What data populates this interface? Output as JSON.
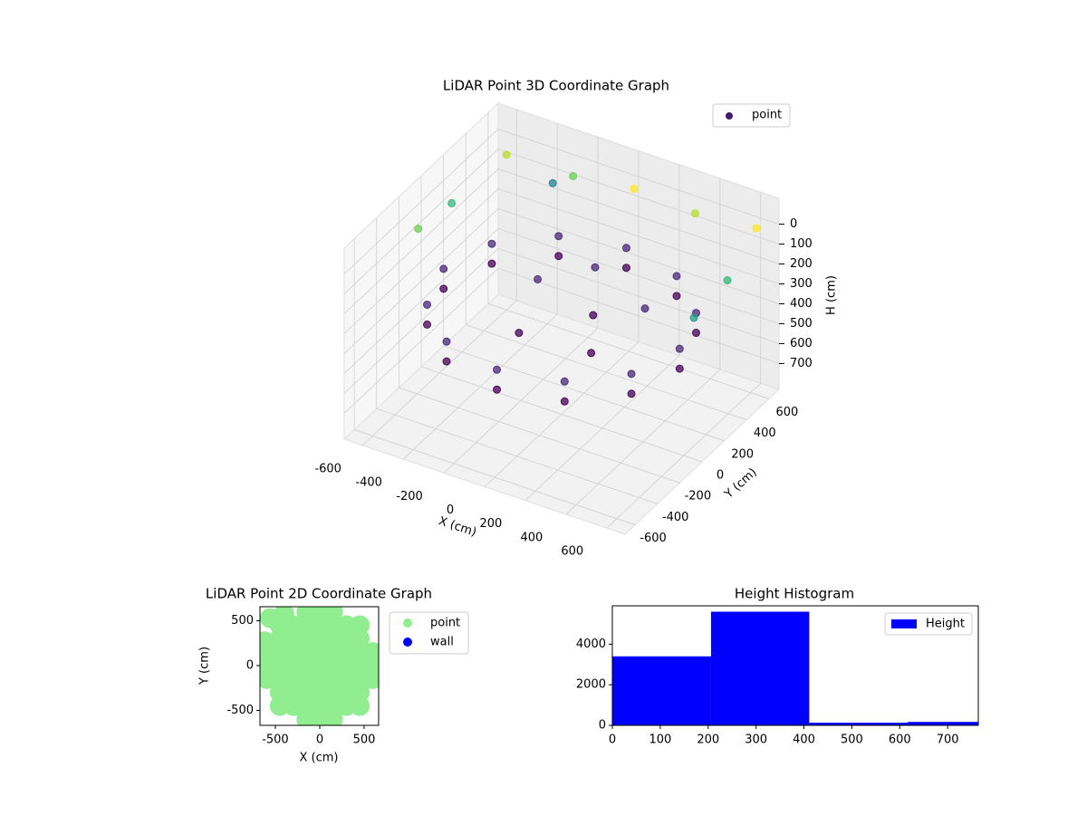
{
  "chart_data": [
    {
      "type": "scatter3d",
      "title": "LiDAR Point 3D Coordinate Graph",
      "xlabel": "X (cm)",
      "ylabel": "Y (cm)",
      "zlabel": "H (cm)",
      "xlim": [
        -690,
        690
      ],
      "ylim": [
        -690,
        690
      ],
      "zlim": [
        830,
        -130
      ],
      "xticks": [
        -600,
        -400,
        -200,
        0,
        200,
        400,
        600
      ],
      "yticks": [
        -600,
        -400,
        -200,
        0,
        200,
        400,
        600
      ],
      "zticks": [
        0,
        100,
        200,
        300,
        400,
        500,
        600,
        700
      ],
      "cmap": "viridis",
      "legend": "upper right",
      "grid": true,
      "series": [
        {
          "name": "point",
          "color": "#46186b",
          "x": [
            580,
            502,
            290,
            0,
            -290,
            -502,
            -580,
            -502,
            -290,
            0,
            290,
            502,
            580,
            502,
            290,
            0,
            -290,
            -502,
            -580,
            -502,
            -290,
            0,
            290,
            502,
            100,
            -200,
            200,
            -100,
            0,
            300,
            -600,
            -300,
            0,
            300,
            600,
            650,
            650,
            -650,
            -650,
            -400
          ],
          "y": [
            0,
            290,
            502,
            580,
            502,
            290,
            0,
            -290,
            -502,
            -580,
            -502,
            -290,
            0,
            290,
            502,
            580,
            502,
            290,
            0,
            -290,
            -502,
            -580,
            -502,
            -290,
            100,
            150,
            -100,
            -200,
            300,
            200,
            600,
            650,
            650,
            650,
            650,
            300,
            0,
            200,
            -100,
            650
          ],
          "z": [
            300,
            300,
            300,
            300,
            300,
            300,
            300,
            300,
            300,
            300,
            300,
            300,
            400,
            400,
            400,
            400,
            400,
            400,
            400,
            400,
            400,
            400,
            400,
            400,
            350,
            300,
            400,
            350,
            250,
            300,
            50,
            80,
            40,
            60,
            30,
            90,
            120,
            100,
            70,
            150
          ]
        }
      ]
    },
    {
      "type": "scatter",
      "title": "LiDAR Point 2D Coordinate Graph",
      "xlabel": "X (cm)",
      "ylabel": "Y (cm)",
      "xlim": [
        -673,
        663
      ],
      "ylim": [
        -667,
        657
      ],
      "xticks": [
        -500,
        0,
        500
      ],
      "yticks": [
        -500,
        0,
        500
      ],
      "legend": "outside right",
      "series": [
        {
          "name": "point",
          "color": "#90ee90",
          "x": [
            -150,
            0,
            150,
            -450,
            -300,
            -150,
            0,
            150,
            300,
            450,
            -450,
            -300,
            -150,
            0,
            150,
            300,
            450,
            -600,
            -450,
            -300,
            -150,
            0,
            150,
            300,
            450,
            600,
            -600,
            -450,
            -300,
            -150,
            0,
            150,
            300,
            450,
            600,
            -600,
            -450,
            -300,
            -150,
            0,
            150,
            300,
            450,
            600,
            -450,
            -300,
            -150,
            0,
            150,
            300,
            450,
            -450,
            -300,
            -150,
            0,
            150,
            300,
            450,
            -150,
            0,
            150,
            -560,
            -400,
            -620
          ],
          "y": [
            600,
            600,
            600,
            450,
            450,
            450,
            450,
            450,
            450,
            450,
            300,
            300,
            300,
            300,
            300,
            300,
            300,
            150,
            150,
            150,
            150,
            150,
            150,
            150,
            150,
            150,
            0,
            0,
            0,
            0,
            0,
            0,
            0,
            0,
            0,
            -150,
            -150,
            -150,
            -150,
            -150,
            -150,
            -150,
            -150,
            -150,
            -300,
            -300,
            -300,
            -300,
            -300,
            -300,
            -300,
            -450,
            -450,
            -450,
            -450,
            -450,
            -450,
            -450,
            -600,
            -600,
            -600,
            530,
            580,
            270
          ]
        },
        {
          "name": "wall",
          "color": "#0000ff",
          "x": [],
          "y": []
        }
      ]
    },
    {
      "type": "histogram",
      "title": "Height Histogram",
      "bins": [
        0,
        206,
        411,
        617,
        822
      ],
      "values": [
        3400,
        5600,
        130,
        170
      ],
      "series_name": "Height",
      "color": "#0000ff",
      "xlim": [
        0,
        764
      ],
      "ylim": [
        0,
        5890
      ],
      "xticks": [
        0,
        100,
        200,
        300,
        400,
        500,
        600,
        700
      ],
      "yticks": [
        0,
        2000,
        4000
      ],
      "legend": "upper right"
    }
  ]
}
